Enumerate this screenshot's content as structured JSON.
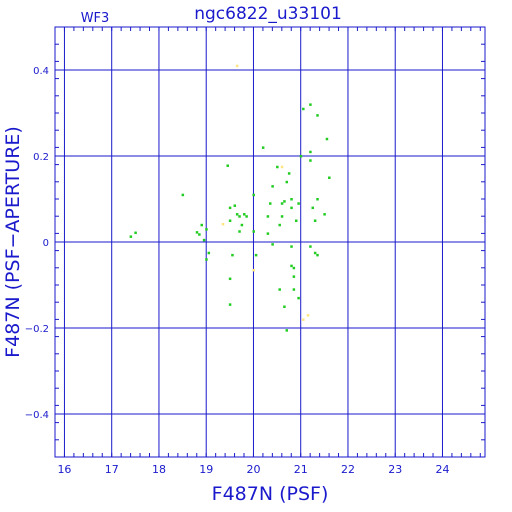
{
  "header": {
    "chip": "WF3",
    "title": "ngc6822_u33101"
  },
  "chart_data": {
    "type": "scatter",
    "title": "ngc6822_u33101",
    "subtitle": "WF3",
    "xlabel": "F487N (PSF)",
    "ylabel": "F487N (PSF−APERTURE)",
    "xlim": [
      15.8,
      24.9
    ],
    "ylim": [
      -0.5,
      0.5
    ],
    "x_ticks": [
      16,
      17,
      18,
      19,
      20,
      21,
      22,
      23,
      24
    ],
    "y_ticks": [
      -0.4,
      -0.2,
      0,
      0.2,
      0.4
    ],
    "y_tick_labels": [
      "−0.4",
      "−0.2",
      "0",
      "0.2",
      "0.4"
    ],
    "grid": true,
    "colors": {
      "axes": "#1a1acc",
      "green": "#22cc22",
      "yellow": "#ffe680"
    },
    "series": [
      {
        "color": "green",
        "points": [
          [
            17.4,
            0.013
          ],
          [
            17.5,
            0.022
          ],
          [
            18.5,
            0.11
          ],
          [
            18.8,
            0.023
          ],
          [
            18.85,
            0.018
          ],
          [
            18.9,
            0.04
          ],
          [
            18.95,
            0.005
          ],
          [
            19.0,
            0.03
          ],
          [
            19.05,
            -0.025
          ],
          [
            19.0,
            -0.04
          ],
          [
            19.45,
            0.178
          ],
          [
            19.5,
            0.08
          ],
          [
            19.5,
            0.05
          ],
          [
            19.6,
            0.085
          ],
          [
            19.65,
            0.065
          ],
          [
            19.7,
            0.06
          ],
          [
            19.75,
            0.04
          ],
          [
            19.8,
            0.065
          ],
          [
            19.85,
            0.06
          ],
          [
            19.7,
            0.025
          ],
          [
            19.55,
            -0.03
          ],
          [
            19.5,
            -0.085
          ],
          [
            19.5,
            -0.145
          ],
          [
            20.0,
            0.11
          ],
          [
            20.0,
            0.025
          ],
          [
            20.05,
            -0.03
          ],
          [
            20.2,
            0.22
          ],
          [
            20.3,
            0.06
          ],
          [
            20.3,
            0.02
          ],
          [
            20.35,
            0.09
          ],
          [
            20.4,
            -0.005
          ],
          [
            20.4,
            0.13
          ],
          [
            20.5,
            0.175
          ],
          [
            20.55,
            0.04
          ],
          [
            20.6,
            0.09
          ],
          [
            20.6,
            0.06
          ],
          [
            20.65,
            0.095
          ],
          [
            20.7,
            0.14
          ],
          [
            20.75,
            0.16
          ],
          [
            20.8,
            0.1
          ],
          [
            20.8,
            0.08
          ],
          [
            20.8,
            -0.01
          ],
          [
            20.8,
            -0.055
          ],
          [
            20.85,
            -0.06
          ],
          [
            20.85,
            -0.08
          ],
          [
            20.85,
            -0.11
          ],
          [
            20.9,
            0.05
          ],
          [
            20.95,
            0.09
          ],
          [
            20.95,
            -0.13
          ],
          [
            21.0,
            0.2
          ],
          [
            20.55,
            -0.11
          ],
          [
            20.65,
            -0.15
          ],
          [
            20.7,
            -0.205
          ],
          [
            21.05,
            0.31
          ],
          [
            21.2,
            0.32
          ],
          [
            21.2,
            0.19
          ],
          [
            21.2,
            0.21
          ],
          [
            21.2,
            -0.01
          ],
          [
            21.25,
            0.08
          ],
          [
            21.3,
            -0.025
          ],
          [
            21.35,
            -0.03
          ],
          [
            21.3,
            0.05
          ],
          [
            21.35,
            0.295
          ],
          [
            21.35,
            0.1
          ],
          [
            21.5,
            0.065
          ],
          [
            21.55,
            0.24
          ],
          [
            21.6,
            0.15
          ]
        ]
      },
      {
        "color": "yellow",
        "points": [
          [
            19.35,
            0.042
          ],
          [
            19.65,
            0.41
          ],
          [
            20.0,
            -0.065
          ],
          [
            20.6,
            0.175
          ],
          [
            21.05,
            -0.18
          ],
          [
            21.15,
            -0.17
          ]
        ]
      }
    ]
  }
}
